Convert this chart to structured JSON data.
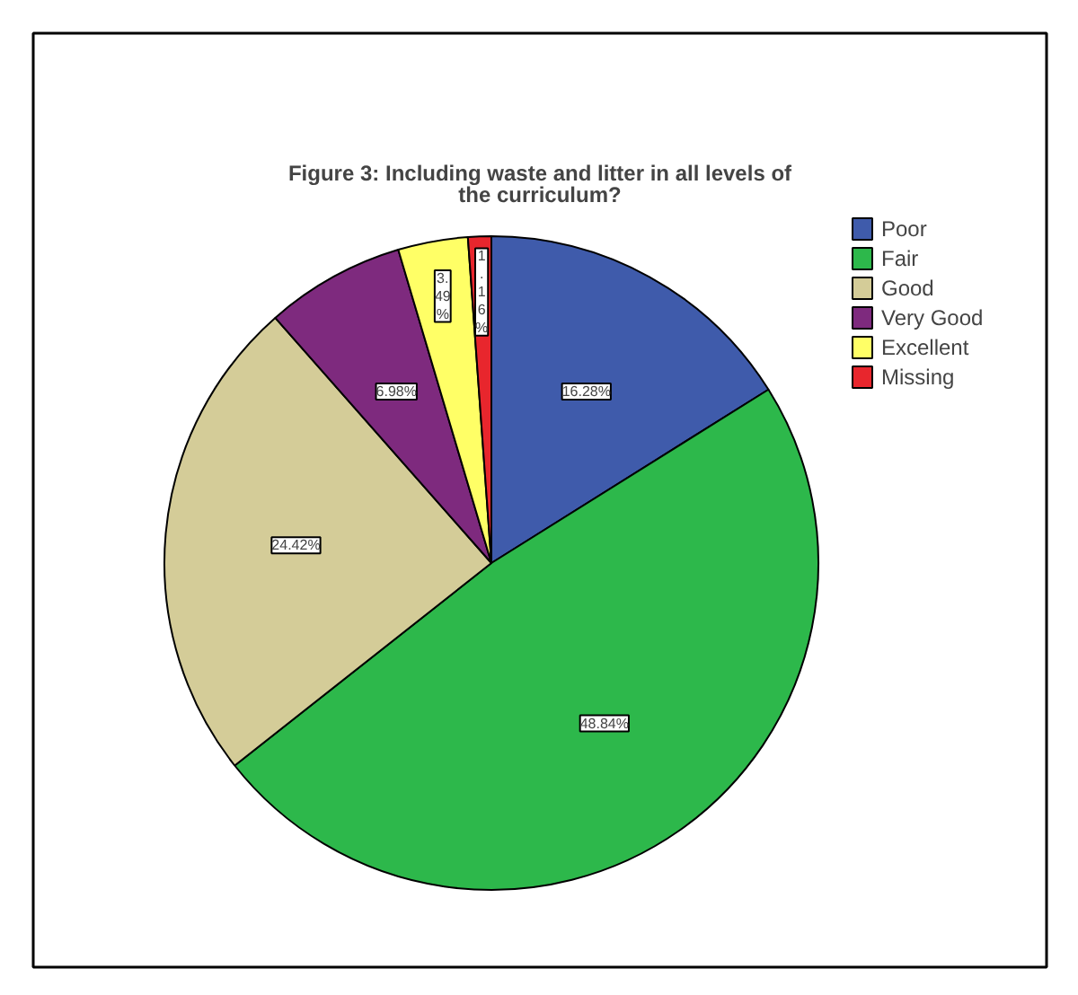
{
  "chart_data": {
    "type": "pie",
    "title": "Figure 3: Including waste and litter in all levels of the curriculum?",
    "categories": [
      "Poor",
      "Fair",
      "Good",
      "Very Good",
      "Excellent",
      "Missing"
    ],
    "values": [
      16.28,
      48.84,
      24.42,
      6.98,
      3.49,
      1.16
    ],
    "colors": [
      "#3f5bab",
      "#2db84b",
      "#d4cc98",
      "#7e2a7e",
      "#ffff66",
      "#e8262d"
    ],
    "value_labels": [
      "16.28%",
      "48.84%",
      "24.42%",
      "6.98%",
      "3.49%",
      "1.16%"
    ],
    "legend": "top right"
  }
}
